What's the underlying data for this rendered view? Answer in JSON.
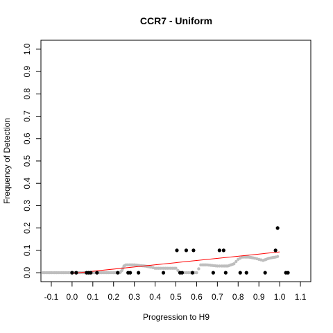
{
  "chart_data": {
    "type": "scatter",
    "title": "CCR7 - Uniform",
    "xlabel": "Progression to H9",
    "ylabel": "Frequency of Detection",
    "xlim": [
      -0.15,
      1.15
    ],
    "ylim": [
      -0.04,
      1.04
    ],
    "x_ticks": [
      -0.1,
      0.0,
      0.1,
      0.2,
      0.3,
      0.4,
      0.5,
      0.6,
      0.7,
      0.8,
      0.9,
      1.0,
      1.1
    ],
    "x_tick_labels": [
      "-0.1",
      "0.0",
      "0.1",
      "0.2",
      "0.3",
      "0.4",
      "0.5",
      "0.6",
      "0.7",
      "0.8",
      "0.9",
      "1.0",
      "1.1"
    ],
    "y_ticks": [
      0.0,
      0.1,
      0.2,
      0.3,
      0.4,
      0.5,
      0.6,
      0.7,
      0.8,
      0.9,
      1.0
    ],
    "y_tick_labels": [
      "0.0",
      "0.1",
      "0.2",
      "0.3",
      "0.4",
      "0.5",
      "0.6",
      "0.7",
      "0.8",
      "0.9",
      "1.0"
    ],
    "grid": false,
    "colors": {
      "points": "#000000",
      "smooth": "#bebebe",
      "trend": "#ff0000",
      "axes": "#000000"
    },
    "series": [
      {
        "kind": "points",
        "x": [
          0.0,
          0.02,
          0.07,
          0.08,
          0.09,
          0.12,
          0.22,
          0.27,
          0.28,
          0.32,
          0.44,
          0.505,
          0.52,
          0.53,
          0.55,
          0.58,
          0.585,
          0.68,
          0.71,
          0.73,
          0.74,
          0.81,
          0.84,
          0.93,
          0.98,
          0.99,
          1.03,
          1.04
        ],
        "y": [
          0.0,
          0.0,
          0.0,
          0.0,
          0.0,
          0.0,
          0.0,
          0.0,
          0.0,
          0.0,
          0.0,
          0.1,
          0.0,
          0.0,
          0.1,
          0.0,
          0.1,
          0.0,
          0.1,
          0.1,
          0.0,
          0.0,
          0.0,
          0.0,
          0.1,
          0.2,
          0.0,
          0.0
        ]
      },
      {
        "kind": "smooth",
        "x": [
          -0.14,
          -0.1,
          -0.05,
          0.0,
          0.05,
          0.1,
          0.15,
          0.2,
          0.23,
          0.24,
          0.25,
          0.26,
          0.3,
          0.35,
          0.38,
          0.4,
          0.45,
          0.5,
          0.52,
          0.54,
          0.56,
          0.58,
          0.6,
          0.62,
          0.65,
          0.7,
          0.72,
          0.75,
          0.78,
          0.8,
          0.82,
          0.85,
          0.88,
          0.9,
          0.92,
          0.95,
          0.98,
          1.0
        ],
        "y": [
          0.0,
          0.0,
          0.0,
          0.0,
          0.0,
          0.0,
          0.0,
          0.0,
          0.0,
          0.01,
          0.03,
          0.035,
          0.035,
          0.03,
          0.025,
          0.02,
          0.02,
          0.02,
          0.0,
          0.0,
          0.0,
          0.0,
          0.0,
          0.035,
          0.035,
          0.03,
          0.03,
          0.03,
          0.04,
          0.06,
          0.07,
          0.07,
          0.065,
          0.06,
          0.055,
          0.065,
          0.07,
          0.075
        ]
      },
      {
        "kind": "trend",
        "x": [
          0.0,
          1.0
        ],
        "y": [
          -0.003,
          0.093
        ]
      }
    ]
  }
}
